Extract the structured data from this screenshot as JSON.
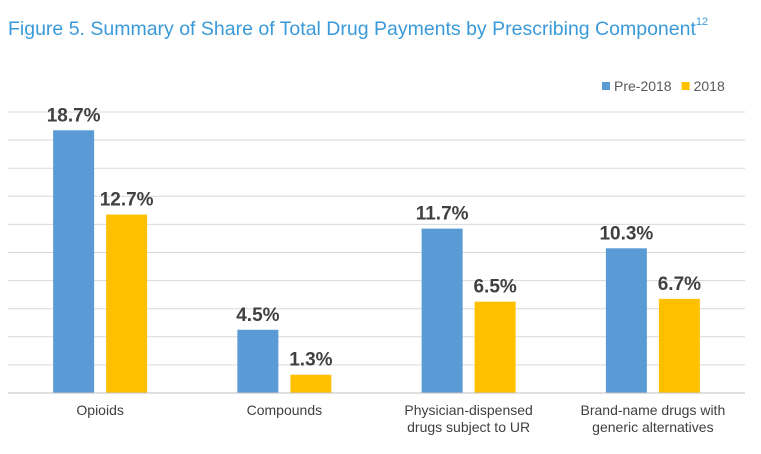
{
  "title": "Figure 5. Summary of Share of Total Drug Payments by Prescribing Component",
  "title_superscript": "12",
  "chart_data": {
    "type": "bar",
    "categories": [
      [
        "Opioids"
      ],
      [
        "Compounds"
      ],
      [
        "Physician-dispensed",
        "drugs subject to UR"
      ],
      [
        "Brand-name drugs with",
        "generic alternatives"
      ]
    ],
    "series": [
      {
        "name": "Pre-2018",
        "color": "#5b9bd5",
        "values": [
          18.7,
          4.5,
          11.7,
          10.3
        ],
        "labels": [
          "18.7%",
          "4.5%",
          "11.7%",
          "10.3%"
        ]
      },
      {
        "name": "2018",
        "color": "#ffc000",
        "values": [
          12.7,
          1.3,
          6.5,
          6.7
        ],
        "labels": [
          "12.7%",
          "1.3%",
          "6.5%",
          "6.7%"
        ]
      }
    ],
    "ylim": [
      0,
      20
    ],
    "grid_step": 2,
    "grid": true,
    "y_axis_labels_shown": false,
    "legend_position": "top-right",
    "xlabel": "",
    "ylabel": ""
  }
}
